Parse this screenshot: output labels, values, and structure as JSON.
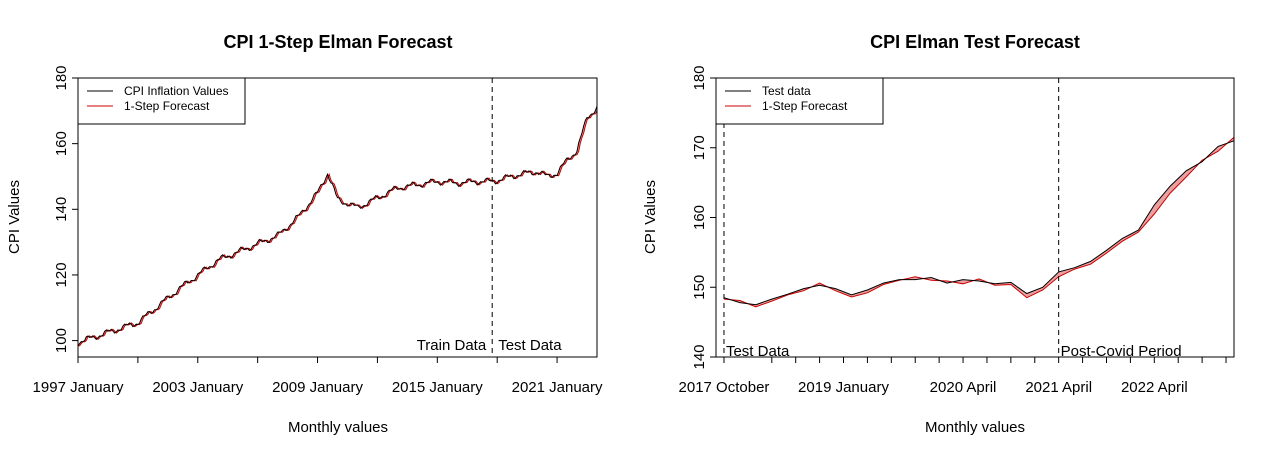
{
  "chart_data": [
    {
      "type": "line",
      "title": "CPI 1-Step Elman Forecast",
      "xlabel": "Monthly values",
      "ylabel": "CPI Values",
      "x_range": [
        "1997-01",
        "2023-01"
      ],
      "ylim": [
        95,
        180
      ],
      "x_tick_labels": [
        "1997 January",
        "2003 January",
        "2009 January",
        "2015 January",
        "2021 January"
      ],
      "x_tick_dates": [
        "1997-01",
        "2003-01",
        "2009-01",
        "2015-01",
        "2021-01"
      ],
      "y_ticks": [
        100,
        120,
        140,
        160,
        180
      ],
      "legend": {
        "position": "top-left",
        "entries": [
          "CPI Inflation Values",
          "1-Step Forecast"
        ]
      },
      "vline": {
        "date": "2017-10",
        "style": "dashed"
      },
      "annotations": [
        "Train Data",
        "Test Data"
      ],
      "series": [
        {
          "name": "CPI Inflation Values",
          "color": "#000000",
          "x": [
            "1997-01",
            "1998-01",
            "1999-01",
            "2000-01",
            "2001-01",
            "2002-01",
            "2003-01",
            "2004-01",
            "2005-01",
            "2006-01",
            "2007-01",
            "2008-01",
            "2009-01",
            "2009-07",
            "2010-01",
            "2011-01",
            "2012-01",
            "2013-01",
            "2014-01",
            "2015-01",
            "2016-01",
            "2017-01",
            "2017-10",
            "2018-06",
            "2019-01",
            "2020-01",
            "2020-07",
            "2021-01",
            "2021-07",
            "2022-01",
            "2022-07",
            "2023-01"
          ],
          "values": [
            99.5,
            101.5,
            103.5,
            105.5,
            110.5,
            115.5,
            120,
            124.5,
            127,
            129.5,
            132,
            137.5,
            145,
            151,
            143,
            140.5,
            143.5,
            146.5,
            147.5,
            148.5,
            148,
            148.5,
            148.5,
            149.5,
            150.5,
            151.5,
            150,
            151,
            155,
            158,
            168,
            171
          ]
        },
        {
          "name": "1-Step Forecast",
          "color": "#cc0000",
          "fill": "#e8a0a0",
          "lag_months": 1
        }
      ]
    },
    {
      "type": "line",
      "title": "CPI Elman Test Forecast",
      "xlabel": "Monthly values",
      "ylabel": "CPI Values",
      "x_range": [
        "2017-09",
        "2023-02"
      ],
      "ylim": [
        140,
        180
      ],
      "x_tick_labels": [
        "2017 October",
        "2019 January",
        "2020 April",
        "2021 April",
        "2022 April"
      ],
      "x_tick_dates": [
        "2017-10",
        "2019-01",
        "2020-04",
        "2021-04",
        "2022-04"
      ],
      "y_ticks": [
        140,
        150,
        160,
        170,
        180
      ],
      "legend": {
        "position": "top-left",
        "entries": [
          "Test data",
          "1-Step Forecast"
        ]
      },
      "vlines": [
        {
          "date": "2017-10",
          "style": "dashed",
          "label": "Test Data"
        },
        {
          "date": "2021-04",
          "style": "dashed",
          "label": "Post-Covid Period"
        }
      ],
      "series": [
        {
          "name": "Test data",
          "color": "#000000",
          "x": [
            "2017-10",
            "2017-12",
            "2018-02",
            "2018-04",
            "2018-06",
            "2018-08",
            "2018-10",
            "2018-12",
            "2019-02",
            "2019-04",
            "2019-06",
            "2019-08",
            "2019-10",
            "2019-12",
            "2020-02",
            "2020-04",
            "2020-06",
            "2020-08",
            "2020-10",
            "2020-12",
            "2021-02",
            "2021-04",
            "2021-06",
            "2021-08",
            "2021-10",
            "2021-12",
            "2022-02",
            "2022-04",
            "2022-06",
            "2022-08",
            "2022-10",
            "2022-12",
            "2023-02"
          ],
          "values": [
            148.5,
            147.8,
            147.5,
            148.3,
            149.0,
            149.8,
            150.3,
            149.8,
            148.9,
            149.6,
            150.6,
            151.1,
            151.1,
            151.4,
            150.6,
            151.1,
            150.9,
            150.5,
            150.7,
            149.1,
            150.0,
            152.2,
            152.8,
            153.7,
            155.3,
            157.0,
            158.2,
            161.8,
            164.5,
            166.7,
            168.0,
            170.2,
            171.0
          ]
        },
        {
          "name": "1-Step Forecast",
          "color": "#cc0000",
          "fill": "#e8a0a0",
          "x": [
            "2017-10",
            "2017-12",
            "2018-02",
            "2018-04",
            "2018-06",
            "2018-08",
            "2018-10",
            "2018-12",
            "2019-02",
            "2019-04",
            "2019-06",
            "2019-08",
            "2019-10",
            "2019-12",
            "2020-02",
            "2020-04",
            "2020-06",
            "2020-08",
            "2020-10",
            "2020-12",
            "2021-02",
            "2021-04",
            "2021-06",
            "2021-08",
            "2021-10",
            "2021-12",
            "2022-02",
            "2022-04",
            "2022-06",
            "2022-08",
            "2022-10",
            "2022-12",
            "2023-02"
          ],
          "values": [
            148.3,
            148.1,
            147.2,
            148.0,
            148.9,
            149.5,
            150.6,
            149.5,
            148.6,
            149.2,
            150.4,
            151.0,
            151.5,
            151.0,
            150.9,
            150.5,
            151.2,
            150.3,
            150.4,
            148.5,
            149.6,
            151.5,
            152.6,
            153.3,
            154.9,
            156.6,
            157.9,
            160.5,
            163.5,
            165.8,
            168.2,
            169.5,
            171.5
          ]
        }
      ]
    }
  ]
}
